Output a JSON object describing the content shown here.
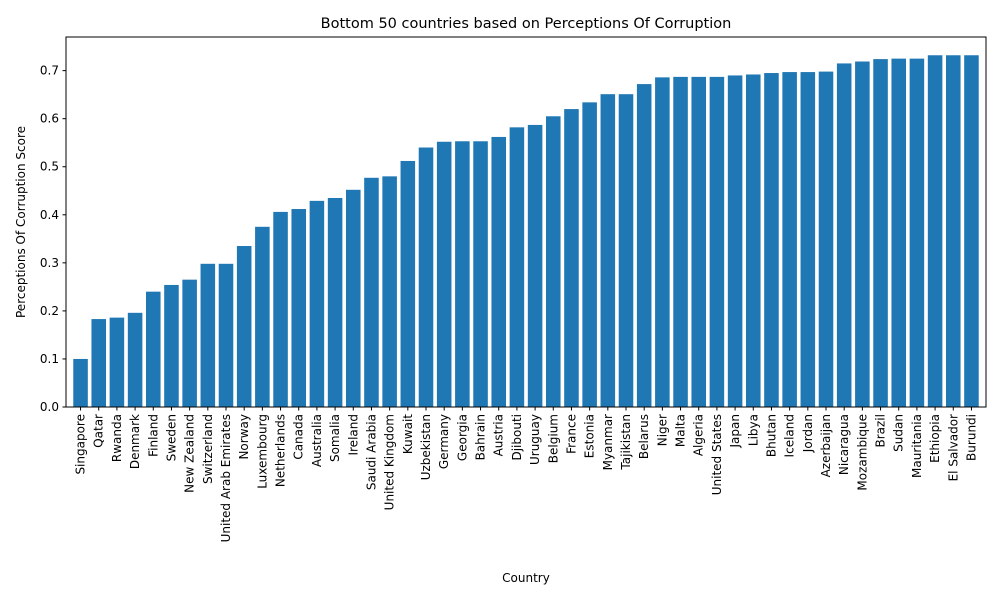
{
  "chart_data": {
    "type": "bar",
    "title": "Bottom 50 countries based on Perceptions Of Corruption",
    "xlabel": "Country",
    "ylabel": "Perceptions Of Corruption Score",
    "ylim": [
      0,
      0.77
    ],
    "yticks": [
      0.0,
      0.1,
      0.2,
      0.3,
      0.4,
      0.5,
      0.6,
      0.7
    ],
    "ytick_labels": [
      "0.0",
      "0.1",
      "0.2",
      "0.3",
      "0.4",
      "0.5",
      "0.6",
      "0.7"
    ],
    "grid": false,
    "bar_color": "#1f77b4",
    "categories": [
      "Singapore",
      "Qatar",
      "Rwanda",
      "Denmark",
      "Finland",
      "Sweden",
      "New Zealand",
      "Switzerland",
      "United Arab Emirates",
      "Norway",
      "Luxembourg",
      "Netherlands",
      "Canada",
      "Australia",
      "Somalia",
      "Ireland",
      "Saudi Arabia",
      "United Kingdom",
      "Kuwait",
      "Uzbekistan",
      "Germany",
      "Georgia",
      "Bahrain",
      "Austria",
      "Djibouti",
      "Uruguay",
      "Belgium",
      "France",
      "Estonia",
      "Myanmar",
      "Tajikistan",
      "Belarus",
      "Niger",
      "Malta",
      "Algeria",
      "United States",
      "Japan",
      "Libya",
      "Bhutan",
      "Iceland",
      "Jordan",
      "Azerbaijan",
      "Nicaragua",
      "Mozambique",
      "Brazil",
      "Sudan",
      "Mauritania",
      "Ethiopia",
      "El Salvador",
      "Burundi"
    ],
    "values": [
      0.1,
      0.183,
      0.186,
      0.196,
      0.24,
      0.254,
      0.265,
      0.298,
      0.298,
      0.335,
      0.375,
      0.406,
      0.412,
      0.429,
      0.435,
      0.452,
      0.477,
      0.48,
      0.512,
      0.54,
      0.552,
      0.553,
      0.553,
      0.562,
      0.582,
      0.587,
      0.605,
      0.62,
      0.634,
      0.651,
      0.651,
      0.672,
      0.686,
      0.687,
      0.687,
      0.687,
      0.69,
      0.692,
      0.695,
      0.697,
      0.697,
      0.698,
      0.715,
      0.719,
      0.724,
      0.725,
      0.725,
      0.732,
      0.732,
      0.732
    ]
  }
}
